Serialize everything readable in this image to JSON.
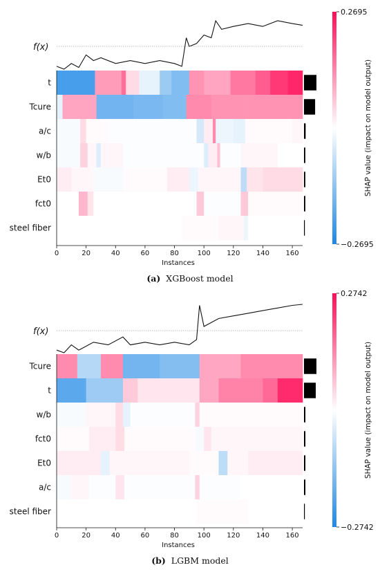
{
  "panels": [
    {
      "caption_letter": "(a)",
      "caption_text": "XGBoost model",
      "fx_label": "f(x)",
      "xlabel": "Instances",
      "colorbar_label": "SHAP value (impact on model output)",
      "colorbar_max": "0.2695",
      "colorbar_min": "−0.2695"
    },
    {
      "caption_letter": "(b)",
      "caption_text": "LGBM model",
      "fx_label": "f(x)",
      "xlabel": "Instances",
      "colorbar_label": "SHAP value (impact on model output)",
      "colorbar_max": "0.2742",
      "colorbar_min": "−0.2742"
    }
  ],
  "colors": {
    "negative": "#1e88e5",
    "positive": "#ff0d57",
    "neutral": "#ffffff",
    "bar": "#000000"
  },
  "chart_data": [
    {
      "type": "heatmap",
      "title": "",
      "xlabel": "Instances",
      "xlim": [
        0,
        167
      ],
      "xticks": [
        0,
        20,
        40,
        60,
        80,
        100,
        120,
        140,
        160
      ],
      "vmin": -0.2695,
      "vmax": 0.2695,
      "features": [
        "t",
        "Tcure",
        "a/c",
        "w/b",
        "Et0",
        "fct0",
        "steel fiber"
      ],
      "mean_abs_importance": [
        0.19,
        0.17,
        0.025,
        0.02,
        0.02,
        0.02,
        0.005
      ],
      "rows": [
        [
          [
            0,
            26,
            -0.22
          ],
          [
            26,
            44,
            0.11
          ],
          [
            44,
            47,
            0.16
          ],
          [
            47,
            56,
            0.04
          ],
          [
            56,
            70,
            -0.03
          ],
          [
            70,
            78,
            -0.12
          ],
          [
            78,
            90,
            -0.15
          ],
          [
            90,
            100,
            0.12
          ],
          [
            100,
            118,
            0.1
          ],
          [
            118,
            135,
            0.15
          ],
          [
            135,
            145,
            0.18
          ],
          [
            145,
            157,
            0.22
          ],
          [
            157,
            167,
            0.24
          ]
        ],
        [
          [
            0,
            4,
            -0.03
          ],
          [
            4,
            27,
            0.1
          ],
          [
            27,
            52,
            -0.17
          ],
          [
            52,
            72,
            -0.16
          ],
          [
            72,
            88,
            -0.15
          ],
          [
            88,
            105,
            0.13
          ],
          [
            105,
            130,
            0.12
          ],
          [
            130,
            167,
            0.12
          ]
        ],
        [
          [
            0,
            16,
            -0.01
          ],
          [
            16,
            20,
            0.04
          ],
          [
            20,
            35,
            0.005
          ],
          [
            35,
            95,
            -0.005
          ],
          [
            95,
            100,
            -0.05
          ],
          [
            100,
            106,
            0.02
          ],
          [
            106,
            108,
            0.13
          ],
          [
            108,
            120,
            -0.02
          ],
          [
            120,
            128,
            -0.03
          ],
          [
            128,
            160,
            0.005
          ],
          [
            160,
            167,
            0.01
          ]
        ],
        [
          [
            0,
            16,
            -0.01
          ],
          [
            16,
            21,
            0.05
          ],
          [
            21,
            27,
            0.01
          ],
          [
            27,
            30,
            -0.04
          ],
          [
            30,
            45,
            0.01
          ],
          [
            45,
            100,
            -0.005
          ],
          [
            100,
            103,
            -0.04
          ],
          [
            103,
            109,
            0.02
          ],
          [
            109,
            111,
            0.07
          ],
          [
            111,
            125,
            -0.005
          ],
          [
            125,
            150,
            0.01
          ],
          [
            150,
            167,
            0.0
          ]
        ],
        [
          [
            0,
            10,
            0.02
          ],
          [
            10,
            25,
            0.01
          ],
          [
            25,
            45,
            -0.01
          ],
          [
            45,
            75,
            0.005
          ],
          [
            75,
            90,
            0.02
          ],
          [
            90,
            96,
            -0.02
          ],
          [
            96,
            125,
            0.01
          ],
          [
            125,
            129,
            -0.08
          ],
          [
            129,
            140,
            0.03
          ],
          [
            140,
            167,
            0.04
          ]
        ],
        [
          [
            0,
            15,
            0.0
          ],
          [
            15,
            21,
            0.08
          ],
          [
            21,
            25,
            0.03
          ],
          [
            25,
            95,
            0.0
          ],
          [
            95,
            100,
            0.06
          ],
          [
            100,
            125,
            -0.005
          ],
          [
            125,
            130,
            0.06
          ],
          [
            130,
            167,
            0.005
          ]
        ],
        [
          [
            0,
            85,
            0.0
          ],
          [
            85,
            110,
            0.005
          ],
          [
            110,
            127,
            0.01
          ],
          [
            127,
            130,
            -0.02
          ],
          [
            130,
            167,
            0.0
          ]
        ]
      ],
      "fx": [
        [
          0,
          0.4
        ],
        [
          5,
          0.35
        ],
        [
          10,
          0.45
        ],
        [
          15,
          0.38
        ],
        [
          20,
          0.6
        ],
        [
          25,
          0.5
        ],
        [
          30,
          0.55
        ],
        [
          40,
          0.45
        ],
        [
          50,
          0.5
        ],
        [
          60,
          0.45
        ],
        [
          70,
          0.5
        ],
        [
          80,
          0.45
        ],
        [
          85,
          0.4
        ],
        [
          88,
          0.9
        ],
        [
          90,
          0.75
        ],
        [
          95,
          0.8
        ],
        [
          100,
          0.95
        ],
        [
          105,
          0.9
        ],
        [
          108,
          1.2
        ],
        [
          112,
          1.05
        ],
        [
          120,
          1.1
        ],
        [
          130,
          1.15
        ],
        [
          140,
          1.1
        ],
        [
          150,
          1.2
        ],
        [
          160,
          1.15
        ],
        [
          167,
          1.12
        ]
      ]
    },
    {
      "type": "heatmap",
      "title": "",
      "xlabel": "Instances",
      "xlim": [
        0,
        167
      ],
      "xticks": [
        0,
        20,
        40,
        60,
        80,
        100,
        120,
        140,
        160
      ],
      "vmin": -0.2742,
      "vmax": 0.2742,
      "features": [
        "Tcure",
        "t",
        "w/b",
        "fct0",
        "Et0",
        "a/c",
        "steel fiber"
      ],
      "mean_abs_importance": [
        0.18,
        0.17,
        0.02,
        0.02,
        0.02,
        0.02,
        0.005
      ],
      "rows": [
        [
          [
            0,
            14,
            0.13
          ],
          [
            14,
            30,
            -0.09
          ],
          [
            30,
            45,
            0.13
          ],
          [
            45,
            70,
            -0.17
          ],
          [
            70,
            97,
            -0.15
          ],
          [
            97,
            125,
            0.1
          ],
          [
            125,
            167,
            0.13
          ]
        ],
        [
          [
            0,
            20,
            -0.2
          ],
          [
            20,
            45,
            -0.12
          ],
          [
            45,
            55,
            0.06
          ],
          [
            55,
            97,
            0.03
          ],
          [
            97,
            110,
            0.1
          ],
          [
            110,
            140,
            0.14
          ],
          [
            140,
            150,
            0.17
          ],
          [
            150,
            167,
            0.24
          ]
        ],
        [
          [
            0,
            20,
            -0.01
          ],
          [
            20,
            40,
            0.01
          ],
          [
            40,
            45,
            0.04
          ],
          [
            45,
            50,
            -0.03
          ],
          [
            50,
            94,
            -0.005
          ],
          [
            94,
            97,
            0.05
          ],
          [
            97,
            167,
            0.005
          ]
        ],
        [
          [
            0,
            22,
            0.005
          ],
          [
            22,
            40,
            0.02
          ],
          [
            40,
            46,
            0.04
          ],
          [
            46,
            94,
            0.005
          ],
          [
            94,
            100,
            -0.01
          ],
          [
            100,
            105,
            0.03
          ],
          [
            105,
            167,
            0.01
          ]
        ],
        [
          [
            0,
            30,
            0.02
          ],
          [
            30,
            36,
            -0.03
          ],
          [
            36,
            90,
            0.01
          ],
          [
            90,
            110,
            0.005
          ],
          [
            110,
            116,
            -0.08
          ],
          [
            116,
            130,
            0.01
          ],
          [
            130,
            167,
            0.02
          ]
        ],
        [
          [
            0,
            10,
            -0.01
          ],
          [
            10,
            22,
            0.01
          ],
          [
            22,
            40,
            -0.005
          ],
          [
            40,
            46,
            0.03
          ],
          [
            46,
            94,
            -0.005
          ],
          [
            94,
            97,
            0.05
          ],
          [
            97,
            125,
            -0.005
          ],
          [
            125,
            167,
            0.0
          ]
        ],
        [
          [
            0,
            95,
            0.0
          ],
          [
            95,
            130,
            0.005
          ],
          [
            130,
            167,
            0.0
          ]
        ]
      ],
      "fx": [
        [
          0,
          0.35
        ],
        [
          5,
          0.3
        ],
        [
          10,
          0.45
        ],
        [
          15,
          0.35
        ],
        [
          25,
          0.5
        ],
        [
          35,
          0.45
        ],
        [
          45,
          0.6
        ],
        [
          50,
          0.45
        ],
        [
          60,
          0.5
        ],
        [
          70,
          0.45
        ],
        [
          80,
          0.5
        ],
        [
          90,
          0.45
        ],
        [
          95,
          0.55
        ],
        [
          97,
          1.2
        ],
        [
          100,
          0.8
        ],
        [
          110,
          0.95
        ],
        [
          120,
          1.0
        ],
        [
          130,
          1.05
        ],
        [
          140,
          1.1
        ],
        [
          150,
          1.15
        ],
        [
          160,
          1.2
        ],
        [
          167,
          1.22
        ]
      ]
    }
  ]
}
